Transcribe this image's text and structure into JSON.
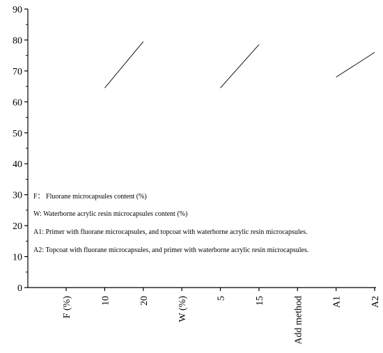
{
  "chart_data": {
    "type": "line",
    "title": "",
    "xlabel": "",
    "ylabel": "",
    "ylim": [
      0,
      90
    ],
    "yticks": [
      0,
      10,
      20,
      30,
      40,
      50,
      60,
      70,
      80,
      90
    ],
    "grid": false,
    "categories": [
      "F (%)",
      "10",
      "20",
      "W (%)",
      "5",
      "15",
      "Add method",
      "A1",
      "A2"
    ],
    "series": [
      {
        "points": [
          {
            "x": "10",
            "y": 64.5
          },
          {
            "x": "20",
            "y": 79.5
          }
        ]
      },
      {
        "points": [
          {
            "x": "5",
            "y": 64.5
          },
          {
            "x": "15",
            "y": 78.5
          }
        ]
      },
      {
        "points": [
          {
            "x": "A1",
            "y": 68.0
          },
          {
            "x": "A2",
            "y": 76.0
          }
        ]
      }
    ],
    "annotations": [
      "F： Fluorane microcapsules content (%)",
      "W: Waterborne acrylic resin microcapsules content (%)",
      "A1: Primer with fluorane microcapsules, and topcoat with waterborne acrylic resin microcapsules.",
      "A2: Topcoat with fluorane microcapsules, and primer with waterborne acrylic resin microcapsules."
    ],
    "line_color": "#000000"
  }
}
